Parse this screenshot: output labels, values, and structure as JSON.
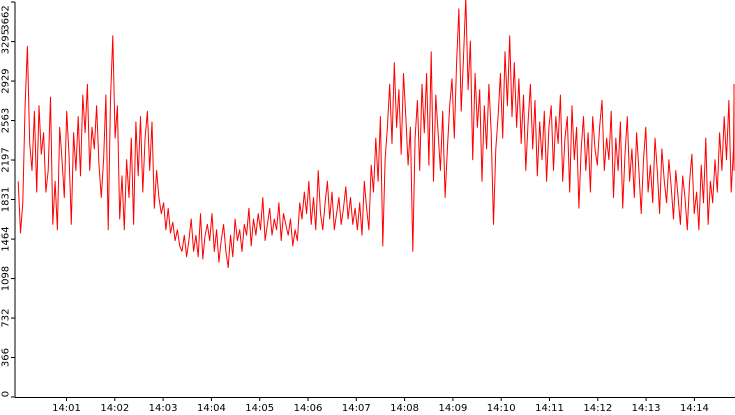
{
  "chart_data": {
    "type": "line",
    "title": "",
    "xlabel": "",
    "ylabel": "",
    "ylim": [
      0,
      3662
    ],
    "grid": false,
    "legend": "none",
    "y_ticks": [
      0,
      366,
      732,
      1098,
      1464,
      1831,
      2197,
      2563,
      2929,
      3295,
      3662
    ],
    "y_tick_labels": [
      "0",
      "366",
      "732",
      "1098",
      "1464",
      "1831",
      "2197",
      "2563",
      "2929",
      "3295",
      "3662"
    ],
    "x_tick_labels": [
      "14:01",
      "14:02",
      "14:03",
      "14:04",
      "14:05",
      "14:06",
      "14:07",
      "14:08",
      "14:09",
      "14:10",
      "14:11",
      "14:12",
      "14:13",
      "14:14"
    ],
    "x_range_minutes": [
      14.0,
      15.0
    ],
    "series": [
      {
        "color": "#ff0000",
        "x_start": "14:00:00",
        "x_end": "14:15:00",
        "values": [
          2000,
          1520,
          1800,
          2700,
          3250,
          2350,
          2100,
          2650,
          1900,
          2700,
          2250,
          2450,
          1900,
          2100,
          2780,
          1600,
          2000,
          1550,
          2500,
          2200,
          1850,
          2650,
          2250,
          1600,
          2450,
          2100,
          2600,
          2050,
          2800,
          2450,
          2900,
          2100,
          2500,
          2300,
          2700,
          2150,
          1850,
          2200,
          2800,
          1550,
          2750,
          3350,
          2400,
          2700,
          1650,
          2050,
          1550,
          2200,
          1850,
          2400,
          1600,
          2550,
          2050,
          2600,
          1900,
          2400,
          2650,
          2100,
          2550,
          1750,
          2100,
          1850,
          1700,
          1800,
          1550,
          1750,
          1520,
          1620,
          1450,
          1550,
          1400,
          1350,
          1500,
          1300,
          1450,
          1650,
          1350,
          1500,
          1300,
          1700,
          1280,
          1500,
          1600,
          1450,
          1700,
          1350,
          1550,
          1250,
          1450,
          1600,
          1350,
          1200,
          1500,
          1300,
          1650,
          1450,
          1550,
          1350,
          1600,
          1500,
          1750,
          1400,
          1650,
          1500,
          1700,
          1550,
          1850,
          1450,
          1600,
          1750,
          1500,
          1650,
          1550,
          1800,
          1450,
          1700,
          1600,
          1500,
          1650,
          1400,
          1550,
          1450,
          1800,
          1650,
          1900,
          1700,
          2000,
          1600,
          1850,
          1550,
          2100,
          1700,
          1550,
          1800,
          2000,
          1650,
          1900,
          1550,
          1700,
          1850,
          1600,
          1750,
          1950,
          1650,
          1850,
          1600,
          1750,
          1550,
          1800,
          1500,
          2000,
          1750,
          1550,
          2150,
          1900,
          2400,
          2000,
          2600,
          1400,
          2200,
          2500,
          2900,
          2350,
          3100,
          2500,
          2850,
          2250,
          3000,
          2600,
          2150,
          2500,
          1350,
          2400,
          2750,
          2100,
          2900,
          2450,
          3000,
          2150,
          3200,
          2000,
          2800,
          2450,
          2100,
          2650,
          1850,
          2300,
          2700,
          2950,
          2400,
          3100,
          3600,
          2650,
          3150,
          3700,
          2850,
          3300,
          2200,
          3000,
          2500,
          2850,
          2000,
          2700,
          2300,
          2900,
          2450,
          1600,
          2300,
          2600,
          3000,
          2400,
          3200,
          2700,
          3350,
          2600,
          3100,
          2500,
          2950,
          2350,
          2800,
          2100,
          2550,
          2900,
          2300,
          2750,
          2050,
          2550,
          2200,
          2650,
          2000,
          2500,
          2700,
          2100,
          2600,
          2350,
          2800,
          2000,
          2400,
          2600,
          1900,
          2700,
          2200,
          2500,
          1750,
          2300,
          2600,
          2100,
          2450,
          1900,
          2600,
          2300,
          2150,
          2500,
          2750,
          2100,
          2400,
          2200,
          2650,
          1850,
          2400,
          2100,
          2550,
          1750,
          2250,
          2600,
          2000,
          2300,
          1850,
          2450,
          2100,
          1700,
          2200,
          2500,
          1900,
          2150,
          1800,
          2400,
          2100,
          1700,
          2300,
          2000,
          1800,
          2200,
          1950,
          1650,
          2100,
          1850,
          1600,
          2050,
          1850,
          1550,
          2000,
          2250,
          1700,
          1900,
          1550,
          2150,
          1800,
          2400,
          1600,
          2000,
          1800,
          2200,
          1900,
          2450,
          2100,
          2600,
          2200,
          2750,
          1900,
          2300,
          2800,
          2500,
          2900,
          2100
        ]
      }
    ]
  }
}
